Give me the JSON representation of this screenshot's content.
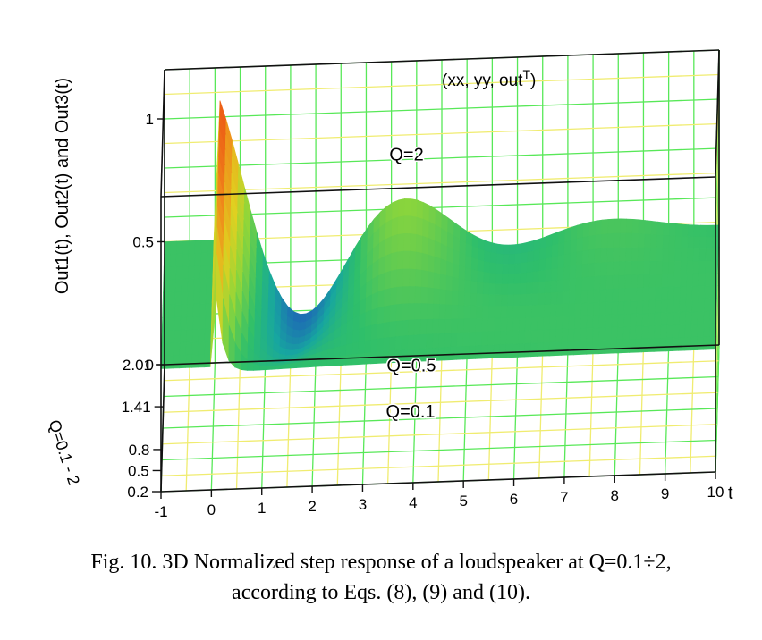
{
  "chart_data": {
    "type": "surface3d",
    "zlabel": "Out1(t), Out2(t) and Out3(t)",
    "ylabel": "Q=0.1 - 2",
    "xlabel": "t",
    "plot_label": "(xx, yy, out",
    "plot_label_sup": "T",
    "x_ticks": [
      "-1",
      "0",
      "1",
      "2",
      "3",
      "4",
      "5",
      "6",
      "7",
      "8",
      "9",
      "10"
    ],
    "y_ticks": [
      "2.01",
      "1.41",
      "0.8",
      "0.5",
      "0.2"
    ],
    "z_ticks": [
      "1",
      "0.5",
      "0"
    ],
    "xlim": [
      -1,
      10
    ],
    "ylim": [
      0.2,
      2.01
    ],
    "zlim": [
      0,
      1.2
    ],
    "series": [
      {
        "name": "Q=2",
        "q": 2.0
      },
      {
        "name": "Q=0.5",
        "q": 0.5
      },
      {
        "name": "Q=0.1",
        "q": 0.1
      }
    ],
    "grid": true,
    "colormap": [
      "#1a0f8c",
      "#1f5fb8",
      "#17a6a0",
      "#2fbf6a",
      "#8fd63a",
      "#e0d020",
      "#f08a1a",
      "#e82010"
    ]
  },
  "caption": {
    "line1": "Fig. 10. 3D Normalized step response of a loudspeaker at Q=0.1÷2,",
    "line2": "according to Eqs. (8), (9) and (10)."
  }
}
